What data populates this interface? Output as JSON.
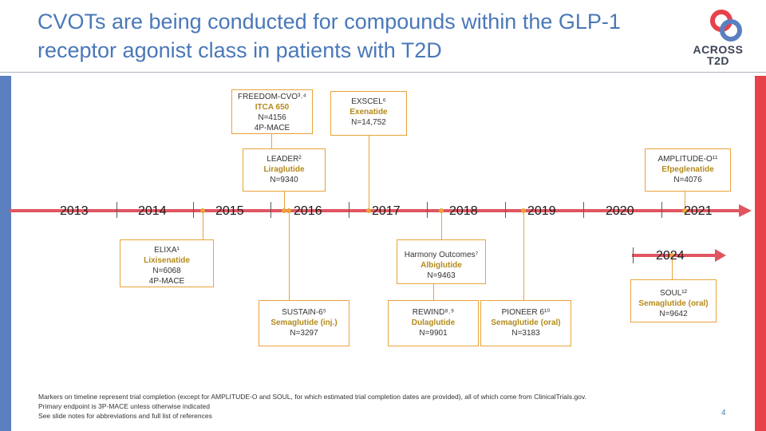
{
  "title": "CVOTs are being conducted for compounds within the GLP-1 receptor agonist class in patients with T2D",
  "logo": {
    "line1": "ACROSS",
    "line2": "T2D"
  },
  "years": [
    "2013",
    "2014",
    "2015",
    "2016",
    "2017",
    "2018",
    "2019",
    "2020",
    "2021"
  ],
  "extra_year": "2024",
  "trials": {
    "freedom": {
      "name": "FREEDOM-CVO³˒⁴",
      "drug": "ITCA 650",
      "n": "N=4156",
      "endpoint": "4P-MACE"
    },
    "exscel": {
      "name": "EXSCEL⁶",
      "drug": "Exenatide",
      "n": "N=14,752"
    },
    "leader": {
      "name": "LEADER²",
      "drug": "Liraglutide",
      "n": "N=9340"
    },
    "amplitude": {
      "name": "AMPLITUDE-O¹¹",
      "drug": "Efpeglenatide",
      "n": "N=4076"
    },
    "elixa": {
      "name": "ELIXA¹",
      "drug": "Lixisenatide",
      "n": "N=6068",
      "endpoint": "4P-MACE"
    },
    "harmony": {
      "name": "Harmony Outcomes⁷",
      "drug": "Albiglutide",
      "n": "N=9463"
    },
    "soul": {
      "name": "SOUL¹²",
      "drug": "Semaglutide (oral)",
      "n": "N=9642"
    },
    "sustain": {
      "name": "SUSTAIN-6⁵",
      "drug": "Semaglutide (inj.)",
      "n": "N=3297"
    },
    "rewind": {
      "name": "REWIND⁸˒⁹",
      "drug": "Dulaglutide",
      "n": "N=9901"
    },
    "pioneer": {
      "name": "PIONEER 6¹⁰",
      "drug": "Semaglutide (oral)",
      "n": "N=3183"
    }
  },
  "footnote": {
    "line1": "Markers on timeline represent trial completion (except for AMPLITUDE-O and SOUL, for which estimated trial completion dates are provided), all of which come from ClinicalTrials.gov.",
    "line2": "Primary endpoint is 3P-MACE unless otherwise indicated",
    "line3": "See slide notes for abbreviations and full list of references"
  },
  "page_number": "4",
  "colors": {
    "title": "#4a78b8",
    "timeline": "#e05560",
    "box_border": "#e8a33a",
    "drug_text": "#b48a1a",
    "left_bar": "#5b7fbf",
    "right_bar": "#e8414a"
  }
}
